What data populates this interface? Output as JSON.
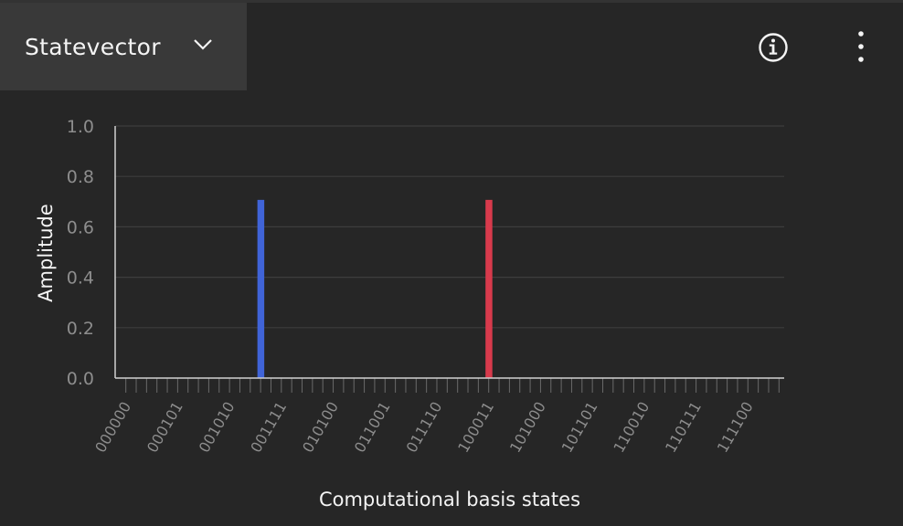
{
  "header": {
    "view_selector": {
      "label": "Statevector",
      "icon": "chevron-down-icon"
    },
    "info_icon": "info-circle-icon",
    "menu_icon": "overflow-menu-vertical-icon"
  },
  "chart_data": {
    "type": "bar",
    "title": "",
    "xlabel": "Computational basis states",
    "ylabel": "Amplitude",
    "ylim": [
      0,
      1.0
    ],
    "yticks": [
      "0.0",
      "0.2",
      "0.4",
      "0.6",
      "0.8",
      "1.0"
    ],
    "grid": true,
    "categories_count": 64,
    "tick_labels": [
      "000000",
      "000101",
      "001010",
      "001111",
      "010100",
      "011001",
      "011110",
      "100011",
      "101000",
      "101101",
      "110010",
      "110111",
      "111100"
    ],
    "bars": [
      {
        "state": "001101",
        "value": 0.707,
        "color": "#4064d8"
      },
      {
        "state": "100011",
        "value": 0.707,
        "color": "#d83a4c"
      }
    ]
  }
}
